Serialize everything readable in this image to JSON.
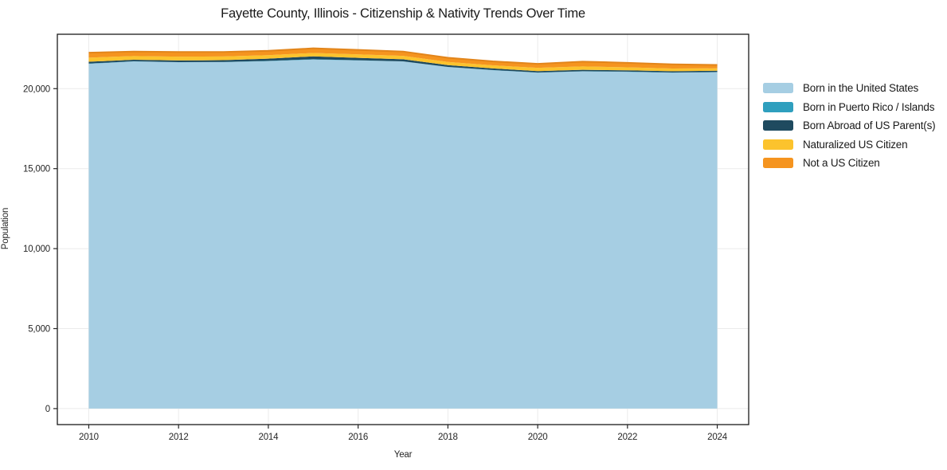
{
  "title": "Fayette County, Illinois - Citizenship & Nativity Trends Over Time",
  "chart_data": {
    "type": "area",
    "stacked": true,
    "title": "Fayette County, Illinois - Citizenship & Nativity Trends Over Time",
    "xlabel": "Year",
    "ylabel": "Population",
    "x": [
      2010,
      2011,
      2012,
      2013,
      2014,
      2015,
      2016,
      2017,
      2018,
      2019,
      2020,
      2021,
      2022,
      2023,
      2024
    ],
    "series": [
      {
        "name": "Born in the United States",
        "color": "#a6cee3",
        "values": [
          21550,
          21700,
          21650,
          21660,
          21720,
          21820,
          21760,
          21700,
          21350,
          21150,
          21000,
          21080,
          21050,
          21000,
          21030
        ]
      },
      {
        "name": "Born in Puerto Rico / Islands",
        "color": "#2f9fbe",
        "values": [
          20,
          15,
          10,
          10,
          15,
          20,
          15,
          10,
          10,
          15,
          10,
          10,
          15,
          10,
          10
        ]
      },
      {
        "name": "Born Abroad of US Parent(s)",
        "color": "#1f4a5f",
        "values": [
          110,
          90,
          100,
          110,
          140,
          180,
          150,
          130,
          110,
          100,
          90,
          90,
          80,
          80,
          80
        ]
      },
      {
        "name": "Naturalized US Citizen",
        "color": "#fcc32d",
        "values": [
          260,
          230,
          240,
          230,
          220,
          210,
          220,
          210,
          200,
          190,
          200,
          210,
          190,
          170,
          150
        ]
      },
      {
        "name": "Not a US Citizen",
        "color": "#f5941f",
        "values": [
          310,
          280,
          290,
          280,
          270,
          290,
          280,
          270,
          260,
          250,
          250,
          300,
          280,
          260,
          210
        ]
      }
    ],
    "xlim": [
      2009.3,
      2024.7
    ],
    "ylim": [
      -1000,
      23400
    ],
    "x_ticks": [
      2010,
      2012,
      2014,
      2016,
      2018,
      2020,
      2022,
      2024
    ],
    "y_ticks": [
      0,
      5000,
      10000,
      15000,
      20000
    ],
    "y_tick_labels": [
      "0",
      "5,000",
      "10,000",
      "15,000",
      "20,000"
    ],
    "grid": true,
    "legend_position": "right",
    "colors": {
      "grid_line": "#ebebeb",
      "plot_border": "#1a1a1a",
      "tick": "#262626",
      "tick_text": "#262626",
      "top_edge_line": "#e2851b"
    }
  }
}
